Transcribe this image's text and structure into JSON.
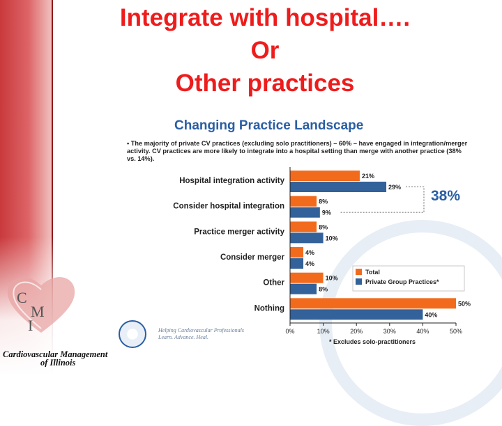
{
  "slide": {
    "title_lines": [
      "Integrate with hospital….",
      "Or",
      "Other practices"
    ]
  },
  "figure": {
    "title": "Changing Practice Landscape",
    "note": "• The majority of private CV practices (excluding solo practitioners) – 60% – have engaged in integration/merger activity.  CV practices are more likely to integrate into a hospital setting than merge with another practice (38% vs. 14%).",
    "annotation": "38%",
    "footnote": "* Excludes solo-practitioners"
  },
  "chart_data": {
    "type": "bar",
    "orientation": "horizontal",
    "title": "Changing Practice Landscape",
    "categories": [
      "Hospital integration activity",
      "Consider hospital integration",
      "Practice merger activity",
      "Consider merger",
      "Other",
      "Nothing"
    ],
    "series": [
      {
        "name": "Total",
        "values": [
          21,
          8,
          8,
          4,
          10,
          50
        ],
        "color": "#f26b1d"
      },
      {
        "name": "Private Group Practices*",
        "values": [
          29,
          9,
          10,
          4,
          8,
          40
        ],
        "color": "#336199"
      }
    ],
    "value_labels": [
      [
        "21%",
        "29%"
      ],
      [
        "8%",
        "9%"
      ],
      [
        "8%",
        "10%"
      ],
      [
        "4%",
        "4%"
      ],
      [
        "10%",
        "8%"
      ],
      [
        "50%",
        "40%"
      ]
    ],
    "xlim": [
      0,
      50
    ],
    "xticks": [
      "0%",
      "10%",
      "20%",
      "30%",
      "40%",
      "50%"
    ],
    "legend_placement": "right",
    "grid": false
  },
  "branding": {
    "acc_tagline_1": "Helping Cardiovascular Professionals",
    "acc_tagline_2": "Learn. Advance. Heal.",
    "cmi_letters": [
      "C",
      "M",
      "I"
    ],
    "cmi_name_1": "Cardiovascular Management",
    "cmi_name_2": "of Illinois"
  }
}
